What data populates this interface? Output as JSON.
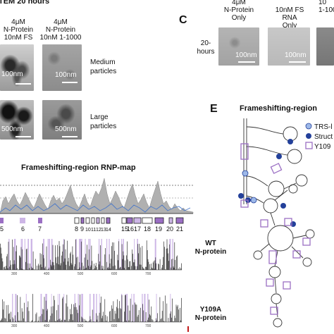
{
  "tem_panel": {
    "header": "TEM 20 hours",
    "col1_label": [
      "4μM",
      "N-Protein",
      "10nM FS"
    ],
    "col2_label": [
      "4μM",
      "N-Protein",
      "10nM 1-1000"
    ],
    "row1": {
      "label": [
        "Medium",
        "particles"
      ],
      "scale_left": "100nm",
      "scale_right": "100nm"
    },
    "row2": {
      "label": [
        "Large",
        "particles"
      ],
      "scale_left": "500nm",
      "scale_right": "500nm"
    }
  },
  "panel_c": {
    "letter": "C",
    "row_label": [
      "20-",
      "hours"
    ],
    "columns": [
      {
        "label": [
          "4μM",
          "N-Protein",
          "Only"
        ],
        "scale": "100nm"
      },
      {
        "label": [
          "10nM FS",
          "RNA",
          "Only"
        ],
        "scale": "100nm"
      },
      {
        "label": [
          "10",
          "1-100"
        ],
        "scale": ""
      }
    ]
  },
  "rnp_map": {
    "title": "Frameshifting-region RNP-map",
    "region_numbers": [
      "5",
      "6",
      "7",
      "8",
      "9",
      "10",
      "11",
      "12",
      "13",
      "14",
      "15",
      "16",
      "17",
      "18",
      "19",
      "20",
      "21"
    ],
    "x_ticks": [
      "300",
      "400",
      "500",
      "600",
      "700"
    ],
    "wt_label": [
      "WT",
      "N-protein"
    ],
    "mutant_label": [
      "Y109A",
      "N-protein"
    ]
  },
  "panel_e": {
    "letter": "E",
    "title": "Frameshifting-region",
    "legend": [
      "TRS-l",
      "Struct",
      "Y109"
    ]
  },
  "colors": {
    "purple": "#9b6fc4",
    "light_purple": "#cdb6e6",
    "navy": "#23409a",
    "light_blue": "#9db8e8",
    "gray_fill": "#b0b0b0"
  }
}
